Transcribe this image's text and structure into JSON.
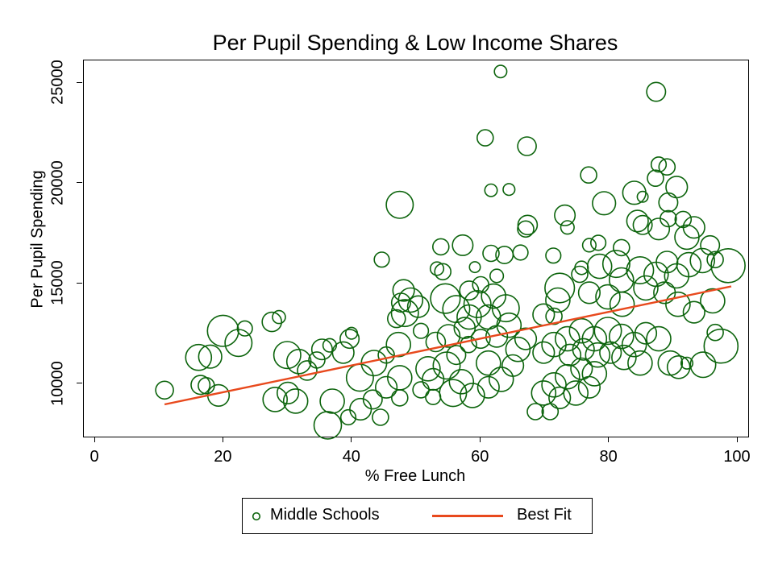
{
  "title": "Per Pupil Spending & Low Income Shares",
  "legend": {
    "position": "bottom-center",
    "entries": [
      {
        "label": "Middle Schools",
        "type": "circle"
      },
      {
        "label": "Best Fit",
        "type": "line"
      }
    ]
  },
  "chart_data": {
    "type": "scatter",
    "title": "Per Pupil Spending & Low Income Shares",
    "xlabel": "% Free Lunch",
    "ylabel": "Per Pupil Spending",
    "xlim": [
      -1.76,
      101.63
    ],
    "ylim": [
      7385,
      26125
    ],
    "x_ticks": [
      0,
      20,
      40,
      60,
      80,
      100
    ],
    "y_ticks": [
      10000,
      15000,
      20000,
      25000
    ],
    "grid": false,
    "marker_color": "#0c640c",
    "line_color": "#e8491d",
    "best_fit": {
      "x1": 10.8,
      "y1": 8990,
      "x2": 99.0,
      "y2": 14870
    },
    "points": [
      [
        63.1,
        25570,
        7.7
      ],
      [
        87.3,
        24560,
        11.7
      ],
      [
        60.7,
        22270,
        10
      ],
      [
        67.2,
        21850,
        11.5
      ],
      [
        76.8,
        20420,
        10
      ],
      [
        61.6,
        19655,
        7.7
      ],
      [
        64.4,
        19695,
        7.3
      ],
      [
        47.4,
        18930,
        16.7
      ],
      [
        87.7,
        20940,
        9.3
      ],
      [
        89.0,
        20820,
        10
      ],
      [
        87.2,
        20260,
        10
      ],
      [
        90.5,
        19815,
        13.3
      ],
      [
        89.2,
        19050,
        11.7
      ],
      [
        79.2,
        19010,
        14.3
      ],
      [
        83.9,
        19530,
        14.3
      ],
      [
        85.2,
        19330,
        6.7
      ],
      [
        73.1,
        18410,
        12.7
      ],
      [
        73.5,
        17805,
        8.3
      ],
      [
        78.3,
        17040,
        9.3
      ],
      [
        84.4,
        18125,
        13.3
      ],
      [
        85.2,
        17925,
        11.7
      ],
      [
        87.7,
        17725,
        13.3
      ],
      [
        89.2,
        18245,
        10
      ],
      [
        91.5,
        18205,
        10
      ],
      [
        93.2,
        17805,
        13.3
      ],
      [
        92.1,
        17320,
        15
      ],
      [
        95.7,
        16920,
        11.7
      ],
      [
        81.9,
        16800,
        10
      ],
      [
        76.9,
        16920,
        8.3
      ],
      [
        67.3,
        17925,
        12
      ],
      [
        67.0,
        17725,
        10
      ],
      [
        44.6,
        16200,
        9.3
      ],
      [
        53.8,
        16840,
        10
      ],
      [
        57.2,
        16920,
        12.7
      ],
      [
        61.6,
        16515,
        10
      ],
      [
        63.7,
        16435,
        10.7
      ],
      [
        66.2,
        16555,
        9.3
      ],
      [
        53.2,
        15750,
        8.3
      ],
      [
        59.1,
        15830,
        6.7
      ],
      [
        54.1,
        15600,
        10
      ],
      [
        62.5,
        15390,
        8.3
      ],
      [
        71.3,
        16400,
        9.3
      ],
      [
        89.0,
        16080,
        13.3
      ],
      [
        92.4,
        15950,
        15
      ],
      [
        94.5,
        16155,
        15
      ],
      [
        96.5,
        16200,
        10
      ],
      [
        98.5,
        15900,
        21
      ],
      [
        81.1,
        15990,
        16.7
      ],
      [
        78.5,
        15870,
        15
      ],
      [
        75.7,
        15790,
        8.3
      ],
      [
        75.4,
        15470,
        10
      ],
      [
        84.8,
        15670,
        16.7
      ],
      [
        87.3,
        15470,
        15
      ],
      [
        90.5,
        15390,
        15
      ],
      [
        81.9,
        15190,
        15
      ],
      [
        49.1,
        14185,
        15
      ],
      [
        47.6,
        14060,
        11.7
      ],
      [
        54.5,
        14265,
        18.3
      ],
      [
        58.2,
        14665,
        11.7
      ],
      [
        60.0,
        14950,
        10
      ],
      [
        62.0,
        14385,
        15
      ],
      [
        72.3,
        14790,
        18.3
      ],
      [
        72.0,
        14185,
        15
      ],
      [
        76.9,
        14550,
        13.3
      ],
      [
        79.8,
        14345,
        15
      ],
      [
        85.7,
        14790,
        15
      ],
      [
        88.6,
        14550,
        13.3
      ],
      [
        82.0,
        13980,
        15
      ],
      [
        90.7,
        13980,
        15
      ],
      [
        96.1,
        14145,
        15
      ],
      [
        48.2,
        13540,
        16.7
      ],
      [
        50.3,
        13860,
        13.3
      ],
      [
        56.2,
        13740,
        16.7
      ],
      [
        59.5,
        13985,
        16.7
      ],
      [
        63.9,
        13780,
        16.7
      ],
      [
        58.2,
        13340,
        15
      ],
      [
        61.2,
        13340,
        15
      ],
      [
        46.9,
        13260,
        11
      ],
      [
        69.8,
        13460,
        13.3
      ],
      [
        71.4,
        13380,
        10
      ],
      [
        93.2,
        13580,
        13.3
      ],
      [
        28.6,
        13340,
        8
      ],
      [
        27.5,
        13100,
        12
      ],
      [
        19.9,
        12655,
        19.3
      ],
      [
        23.3,
        12775,
        9.3
      ],
      [
        22.3,
        12050,
        16.7
      ],
      [
        39.9,
        12535,
        7.3
      ],
      [
        39.6,
        12255,
        11.7
      ],
      [
        50.7,
        12655,
        9.3
      ],
      [
        64.4,
        12935,
        15
      ],
      [
        62.5,
        12375,
        13.3
      ],
      [
        60.0,
        12255,
        11.7
      ],
      [
        58.1,
        11970,
        10
      ],
      [
        67.0,
        12255,
        13.3
      ],
      [
        47.2,
        11970,
        15
      ],
      [
        45.3,
        11450,
        10
      ],
      [
        43.4,
        11050,
        15.7
      ],
      [
        85.7,
        12535,
        13.3
      ],
      [
        87.7,
        12255,
        15
      ],
      [
        96.5,
        12575,
        10
      ],
      [
        79.8,
        12655,
        16.7
      ],
      [
        75.7,
        12655,
        15
      ],
      [
        73.5,
        12255,
        15
      ],
      [
        77.7,
        12255,
        15
      ],
      [
        71.4,
        11970,
        15
      ],
      [
        81.9,
        12375,
        15
      ],
      [
        83.9,
        11970,
        15
      ],
      [
        69.8,
        11570,
        13.3
      ],
      [
        80.2,
        11570,
        13.3
      ],
      [
        78.2,
        11450,
        15
      ],
      [
        76.0,
        11730,
        13.3
      ],
      [
        73.9,
        11450,
        13.3
      ],
      [
        65.8,
        11730,
        15
      ],
      [
        35.3,
        11730,
        12.7
      ],
      [
        36.5,
        11930,
        8.3
      ],
      [
        38.6,
        11570,
        13.3
      ],
      [
        16.1,
        11330,
        16
      ],
      [
        17.9,
        11370,
        14.3
      ],
      [
        29.9,
        11450,
        16.7
      ],
      [
        31.7,
        11125,
        15
      ],
      [
        56.2,
        11450,
        11.7
      ],
      [
        61.2,
        11050,
        15
      ],
      [
        54.7,
        10925,
        16.7
      ],
      [
        51.8,
        10765,
        15
      ],
      [
        82.3,
        11330,
        15
      ],
      [
        84.8,
        11050,
        15
      ],
      [
        89.5,
        11050,
        15
      ],
      [
        90.8,
        10845,
        14
      ],
      [
        92.1,
        11045,
        7.3
      ],
      [
        94.6,
        10965,
        15.7
      ],
      [
        97.4,
        11890,
        21
      ],
      [
        65.0,
        10925,
        13.3
      ],
      [
        41.2,
        10320,
        16.7
      ],
      [
        47.4,
        10320,
        15
      ],
      [
        52.6,
        10240,
        13.3
      ],
      [
        57.0,
        10120,
        15
      ],
      [
        63.2,
        10240,
        15
      ],
      [
        73.5,
        10365,
        15
      ],
      [
        77.7,
        10520,
        15
      ],
      [
        10.8,
        9700,
        11
      ],
      [
        16.4,
        9960,
        11.7
      ],
      [
        17.3,
        9920,
        10
      ],
      [
        45.3,
        9840,
        13.3
      ],
      [
        50.7,
        9718,
        10
      ],
      [
        75.7,
        10765,
        13.3
      ],
      [
        71.4,
        9960,
        15
      ],
      [
        76.9,
        9840,
        13.3
      ],
      [
        19.2,
        9435,
        13.3
      ],
      [
        28.0,
        9235,
        15
      ],
      [
        30.0,
        9555,
        13.3
      ],
      [
        31.2,
        9155,
        15
      ],
      [
        43.2,
        9235,
        11.7
      ],
      [
        44.4,
        8350,
        10
      ],
      [
        41.3,
        8750,
        13.3
      ],
      [
        36.9,
        9150,
        15
      ],
      [
        36.2,
        7950,
        17
      ],
      [
        39.4,
        8350,
        9.3
      ],
      [
        47.4,
        9315,
        10
      ],
      [
        52.6,
        9355,
        9.3
      ],
      [
        55.7,
        9555,
        16.7
      ],
      [
        58.7,
        9435,
        15
      ],
      [
        61.2,
        9840,
        13.3
      ],
      [
        69.8,
        9555,
        15
      ],
      [
        72.3,
        9315,
        13.3
      ],
      [
        74.8,
        9555,
        15
      ],
      [
        68.5,
        8630,
        10
      ],
      [
        70.8,
        8630,
        10
      ],
      [
        33.0,
        10680,
        12
      ],
      [
        34.5,
        11200,
        10
      ],
      [
        48.0,
        14670,
        13.3
      ],
      [
        55.0,
        12400,
        14
      ],
      [
        57.5,
        12800,
        13
      ],
      [
        53.0,
        12100,
        12
      ]
    ]
  }
}
